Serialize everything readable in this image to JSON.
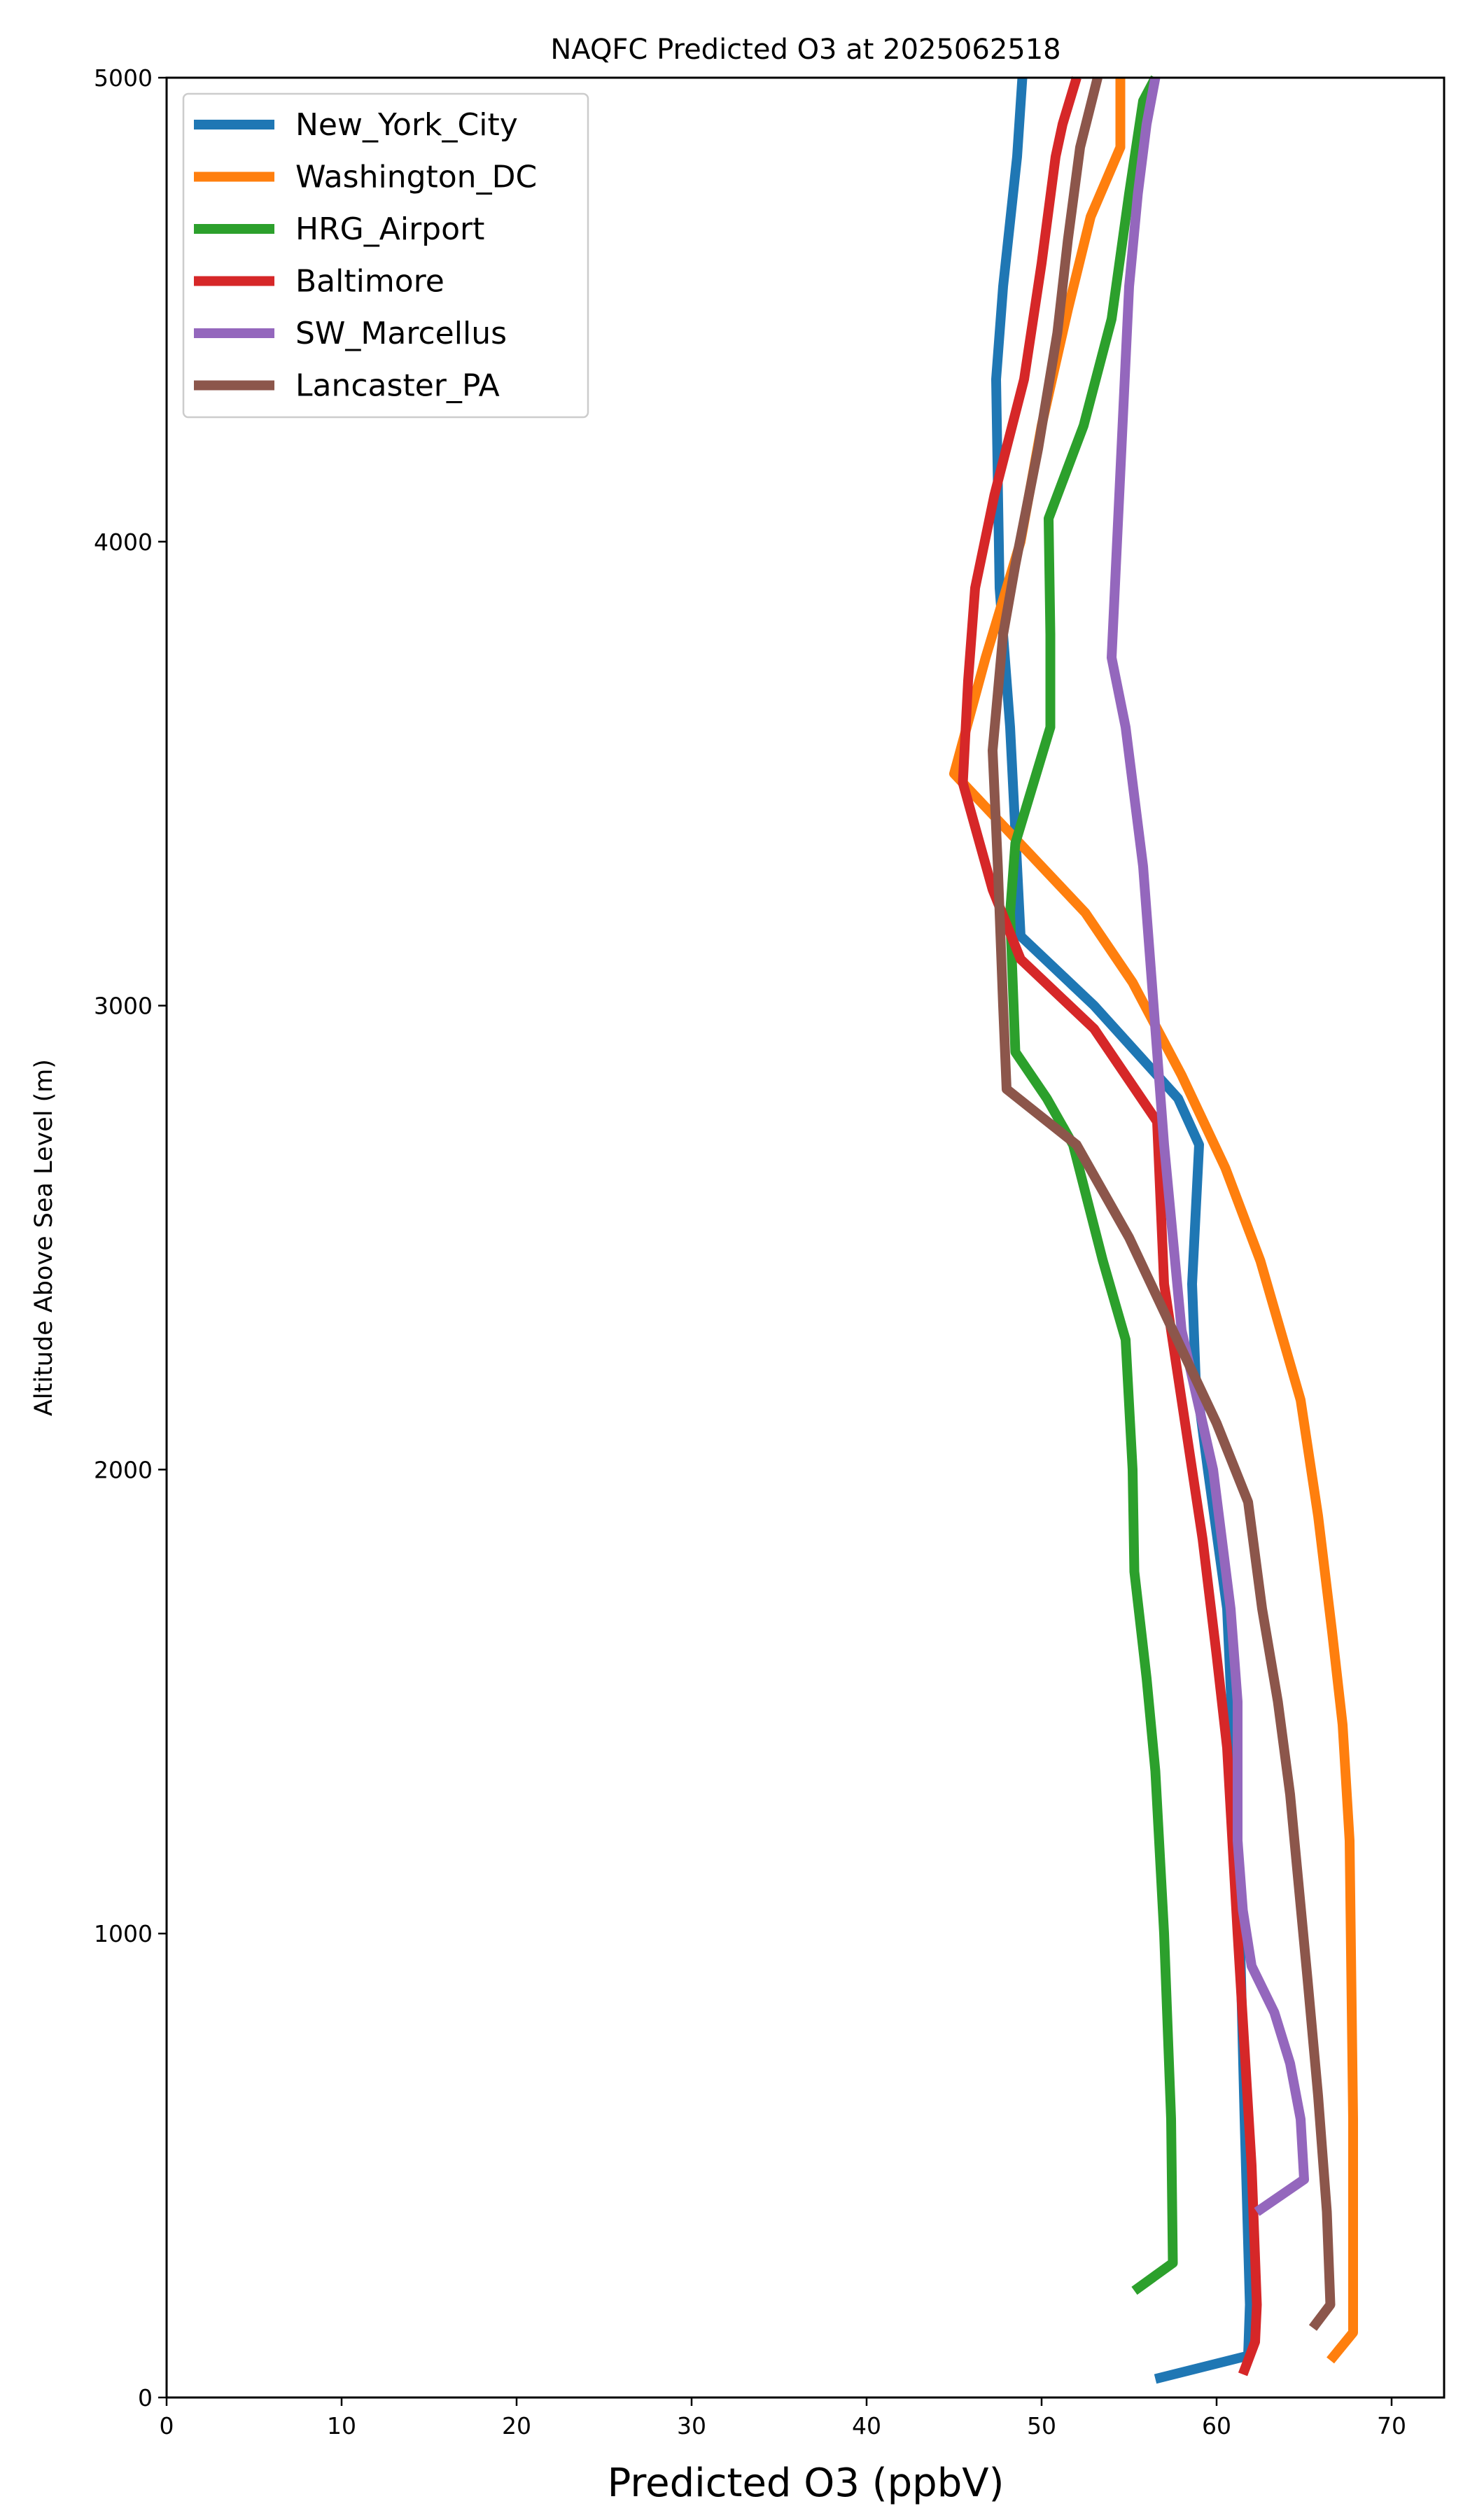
{
  "chart_data": {
    "type": "line",
    "title": "NAQFC Predicted O3 at 2025062518",
    "xlabel": "Predicted O3 (ppbV)",
    "ylabel": "Altitude Above Sea Level (m)",
    "xlim": [
      0,
      73
    ],
    "ylim": [
      0,
      5000
    ],
    "xticks": [
      0,
      10,
      20,
      30,
      40,
      50,
      60,
      70
    ],
    "yticks": [
      0,
      1000,
      2000,
      3000,
      4000,
      5000
    ],
    "grid": false,
    "legend_position": "top-left",
    "series": [
      {
        "name": "New_York_City",
        "color": "#1f77b4",
        "points": [
          [
            56.5,
            40
          ],
          [
            61.8,
            90
          ],
          [
            61.9,
            200
          ],
          [
            61.6,
            600
          ],
          [
            61.2,
            1200
          ],
          [
            60.6,
            1700
          ],
          [
            59.5,
            2000
          ],
          [
            58.8,
            2200
          ],
          [
            58.6,
            2400
          ],
          [
            59.0,
            2700
          ],
          [
            57.8,
            2800
          ],
          [
            53.0,
            3000
          ],
          [
            48.8,
            3150
          ],
          [
            48.6,
            3300
          ],
          [
            48.2,
            3600
          ],
          [
            47.6,
            3900
          ],
          [
            47.4,
            4350
          ],
          [
            47.8,
            4550
          ],
          [
            48.6,
            4830
          ],
          [
            48.9,
            5000
          ]
        ]
      },
      {
        "name": "Washington_DC",
        "color": "#ff7f0e",
        "points": [
          [
            66.5,
            80
          ],
          [
            67.8,
            140
          ],
          [
            67.8,
            600
          ],
          [
            67.6,
            1200
          ],
          [
            67.2,
            1450
          ],
          [
            66.6,
            1650
          ],
          [
            65.8,
            1900
          ],
          [
            64.8,
            2150
          ],
          [
            62.5,
            2450
          ],
          [
            60.5,
            2650
          ],
          [
            58.0,
            2850
          ],
          [
            55.2,
            3050
          ],
          [
            52.5,
            3200
          ],
          [
            47.5,
            3400
          ],
          [
            45.0,
            3500
          ],
          [
            46.8,
            3750
          ],
          [
            48.8,
            4000
          ],
          [
            50.0,
            4250
          ],
          [
            51.5,
            4500
          ],
          [
            52.8,
            4700
          ],
          [
            54.5,
            4850
          ],
          [
            54.5,
            5000
          ]
        ]
      },
      {
        "name": "HRG_Airport",
        "color": "#2ca02c",
        "points": [
          [
            55.3,
            230
          ],
          [
            57.5,
            290
          ],
          [
            57.4,
            600
          ],
          [
            57.0,
            1000
          ],
          [
            56.5,
            1350
          ],
          [
            56.0,
            1550
          ],
          [
            55.3,
            1780
          ],
          [
            55.2,
            2000
          ],
          [
            54.8,
            2280
          ],
          [
            53.5,
            2450
          ],
          [
            51.8,
            2700
          ],
          [
            50.3,
            2800
          ],
          [
            48.5,
            2900
          ],
          [
            48.2,
            3200
          ],
          [
            48.5,
            3350
          ],
          [
            50.5,
            3600
          ],
          [
            50.5,
            3800
          ],
          [
            50.4,
            4050
          ],
          [
            52.4,
            4250
          ],
          [
            54.0,
            4480
          ],
          [
            55.0,
            4750
          ],
          [
            55.8,
            4950
          ],
          [
            56.5,
            5000
          ]
        ]
      },
      {
        "name": "Baltimore",
        "color": "#d62728",
        "points": [
          [
            61.5,
            50
          ],
          [
            62.2,
            120
          ],
          [
            62.3,
            200
          ],
          [
            62.0,
            500
          ],
          [
            61.2,
            1000
          ],
          [
            60.6,
            1400
          ],
          [
            60.0,
            1600
          ],
          [
            59.2,
            1850
          ],
          [
            58.0,
            2150
          ],
          [
            57.0,
            2400
          ],
          [
            56.6,
            2750
          ],
          [
            53.0,
            2950
          ],
          [
            48.8,
            3100
          ],
          [
            47.2,
            3250
          ],
          [
            45.5,
            3480
          ],
          [
            45.8,
            3700
          ],
          [
            46.2,
            3900
          ],
          [
            47.3,
            4100
          ],
          [
            49.0,
            4350
          ],
          [
            50.0,
            4600
          ],
          [
            50.8,
            4830
          ],
          [
            51.2,
            4900
          ],
          [
            52.0,
            5000
          ]
        ]
      },
      {
        "name": "SW_Marcellus",
        "color": "#9467bd",
        "points": [
          [
            62.3,
            400
          ],
          [
            65.0,
            470
          ],
          [
            64.8,
            600
          ],
          [
            64.2,
            720
          ],
          [
            63.3,
            830
          ],
          [
            62.0,
            930
          ],
          [
            61.5,
            1050
          ],
          [
            61.2,
            1200
          ],
          [
            61.2,
            1500
          ],
          [
            60.8,
            1700
          ],
          [
            59.8,
            2000
          ],
          [
            58.0,
            2300
          ],
          [
            57.0,
            2700
          ],
          [
            55.8,
            3300
          ],
          [
            54.8,
            3600
          ],
          [
            54.0,
            3750
          ],
          [
            54.5,
            4150
          ],
          [
            55.0,
            4550
          ],
          [
            55.5,
            4750
          ],
          [
            56.0,
            4900
          ],
          [
            56.5,
            5000
          ]
        ]
      },
      {
        "name": "Lancaster_PA",
        "color": "#8c564b",
        "points": [
          [
            65.5,
            150
          ],
          [
            66.5,
            200
          ],
          [
            66.3,
            400
          ],
          [
            65.8,
            650
          ],
          [
            65.2,
            900
          ],
          [
            64.2,
            1300
          ],
          [
            63.5,
            1500
          ],
          [
            62.6,
            1700
          ],
          [
            61.8,
            1930
          ],
          [
            60.0,
            2100
          ],
          [
            57.5,
            2300
          ],
          [
            55.0,
            2500
          ],
          [
            52.0,
            2700
          ],
          [
            48.0,
            2820
          ],
          [
            47.8,
            3000
          ],
          [
            47.5,
            3300
          ],
          [
            47.2,
            3550
          ],
          [
            47.8,
            3800
          ],
          [
            48.5,
            3950
          ],
          [
            49.8,
            4200
          ],
          [
            50.9,
            4450
          ],
          [
            51.5,
            4650
          ],
          [
            52.2,
            4850
          ],
          [
            53.2,
            5000
          ]
        ]
      }
    ]
  }
}
